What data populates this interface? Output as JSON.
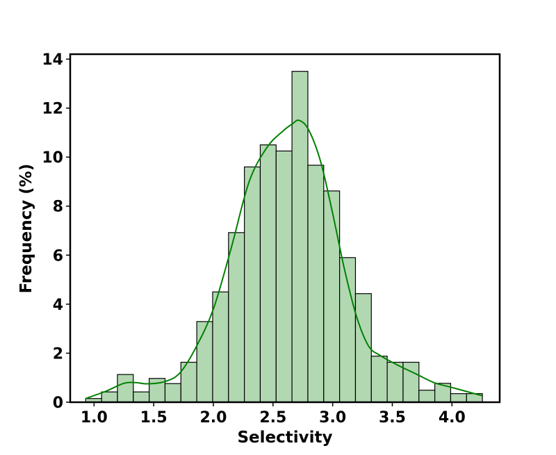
{
  "chart_data": {
    "type": "bar",
    "subtype": "histogram_with_kde",
    "xlabel": "Selectivity",
    "ylabel": "Frequency (%)",
    "xlim": [
      0.8,
      4.4
    ],
    "ylim": [
      0,
      14.2
    ],
    "xticks": [
      1.0,
      1.5,
      2.0,
      2.5,
      3.0,
      3.5,
      4.0
    ],
    "xtick_labels": [
      "1.0",
      "1.5",
      "2.0",
      "2.5",
      "3.0",
      "3.5",
      "4.0"
    ],
    "yticks": [
      0,
      2,
      4,
      6,
      8,
      10,
      12,
      14
    ],
    "ytick_labels": [
      "0",
      "2",
      "4",
      "6",
      "8",
      "10",
      "12",
      "14"
    ],
    "bin_edges": [
      0.93,
      1.063,
      1.196,
      1.329,
      1.462,
      1.595,
      1.728,
      1.861,
      1.994,
      2.127,
      2.26,
      2.393,
      2.526,
      2.659,
      2.792,
      2.925,
      3.058,
      3.191,
      3.324,
      3.457,
      3.59,
      3.723,
      3.856,
      3.989,
      4.122,
      4.255
    ],
    "values": [
      0.15,
      0.42,
      1.13,
      0.42,
      0.97,
      0.76,
      1.63,
      3.29,
      4.5,
      6.92,
      9.6,
      10.5,
      10.25,
      13.5,
      9.67,
      8.62,
      5.9,
      4.43,
      1.88,
      1.63,
      1.63,
      0.49,
      0.77,
      0.35,
      0.35
    ],
    "kde": {
      "x": [
        0.93,
        1.1,
        1.25,
        1.35,
        1.45,
        1.6,
        1.72,
        1.85,
        2.0,
        2.15,
        2.3,
        2.45,
        2.58,
        2.66,
        2.72,
        2.8,
        2.9,
        3.0,
        3.1,
        3.2,
        3.3,
        3.4,
        3.55,
        3.7,
        3.85,
        4.0,
        4.15,
        4.25
      ],
      "y": [
        0.15,
        0.45,
        0.77,
        0.8,
        0.75,
        0.85,
        1.2,
        2.2,
        3.8,
        6.3,
        9.0,
        10.4,
        11.05,
        11.35,
        11.5,
        11.1,
        9.8,
        7.7,
        5.4,
        3.5,
        2.3,
        1.9,
        1.5,
        1.15,
        0.8,
        0.6,
        0.4,
        0.27
      ]
    },
    "grid": false,
    "legend": "none",
    "colors": {
      "bar_fill": "#b2d8b2",
      "bar_edge": "#000000",
      "kde_line": "#008000",
      "axis": "#000000"
    }
  }
}
